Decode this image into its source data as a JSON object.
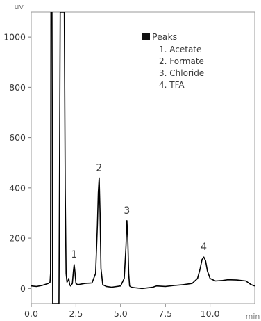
{
  "chart_data": {
    "type": "line",
    "x_unit": "min",
    "y_unit": "uv",
    "xlim": [
      0,
      12.5
    ],
    "ylim": [
      -60,
      1100
    ],
    "x_ticks": [
      {
        "value": 0,
        "label": "0.0"
      },
      {
        "value": 2.5,
        "label": "2.5"
      },
      {
        "value": 5,
        "label": "5.0"
      },
      {
        "value": 7.5,
        "label": "7.5"
      },
      {
        "value": 10,
        "label": "10.0"
      }
    ],
    "y_ticks": [
      {
        "value": 0,
        "label": "0"
      },
      {
        "value": 200,
        "label": "200"
      },
      {
        "value": 400,
        "label": "400"
      },
      {
        "value": 600,
        "label": "600"
      },
      {
        "value": 800,
        "label": "800"
      },
      {
        "value": 1000,
        "label": "1000"
      }
    ],
    "grid": false,
    "legend": {
      "heading": "Peaks",
      "placement": "top-right",
      "entries": [
        "1. Acetate",
        "2. Formate",
        "3. Chloride",
        "4. TFA"
      ]
    },
    "series": [
      {
        "color": "#000000",
        "x": [
          0,
          0.3,
          0.6,
          0.95,
          1.05,
          1.08,
          1.1,
          1.16,
          1.2,
          1.3,
          1.4,
          1.5,
          1.55,
          1.62,
          1.7,
          1.8,
          1.85,
          1.9,
          1.95,
          2.0,
          2.05,
          2.1,
          2.15,
          2.2,
          2.3,
          2.36,
          2.4,
          2.44,
          2.5,
          2.6,
          3.0,
          3.4,
          3.6,
          3.7,
          3.75,
          3.8,
          3.85,
          3.9,
          4.0,
          4.2,
          4.5,
          5.0,
          5.2,
          5.3,
          5.35,
          5.4,
          5.45,
          5.5,
          5.6,
          5.8,
          6.2,
          6.8,
          7.0,
          7.5,
          8.0,
          8.5,
          9.0,
          9.3,
          9.45,
          9.55,
          9.65,
          9.75,
          9.85,
          10.0,
          10.3,
          10.7,
          11.0,
          11.5,
          12.0,
          12.3,
          12.5
        ],
        "y": [
          10,
          8,
          12,
          20,
          25,
          60,
          1100,
          1100,
          -60,
          -60,
          -60,
          -60,
          -60,
          1100,
          1100,
          1100,
          1100,
          400,
          60,
          25,
          30,
          40,
          15,
          10,
          20,
          70,
          95,
          70,
          20,
          15,
          20,
          22,
          60,
          250,
          380,
          440,
          300,
          80,
          15,
          8,
          5,
          10,
          40,
          170,
          270,
          200,
          60,
          10,
          5,
          3,
          0,
          5,
          10,
          8,
          12,
          15,
          20,
          40,
          80,
          115,
          125,
          110,
          70,
          40,
          30,
          32,
          35,
          34,
          30,
          15,
          10
        ]
      }
    ],
    "annotations": [
      {
        "text": "1",
        "x": 2.4,
        "y": 95
      },
      {
        "text": "2",
        "x": 3.8,
        "y": 440
      },
      {
        "text": "3",
        "x": 5.35,
        "y": 270
      },
      {
        "text": "4",
        "x": 9.65,
        "y": 125
      }
    ]
  }
}
